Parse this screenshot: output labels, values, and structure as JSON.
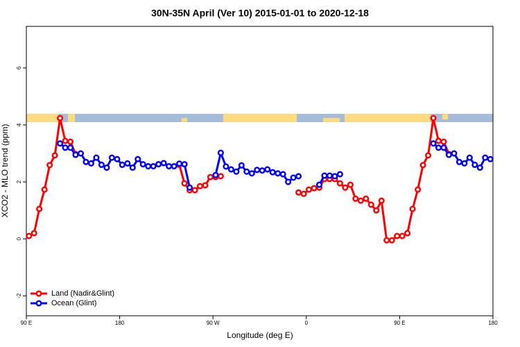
{
  "chart_data": {
    "type": "line",
    "title": "30N-35N April (Ver 10)   2015-01-01 to 2020-12-18",
    "x_label": "Longitude (deg E)",
    "y_label": "XCO2 - MLO trend (ppm)",
    "xlim": [
      90,
      540
    ],
    "xticks": [
      {
        "value": 90,
        "label": "90 E"
      },
      180,
      {
        "value": 270,
        "label": "90 W"
      },
      {
        "value": 360,
        "label": "0"
      },
      {
        "value": 450,
        "label": "90 E"
      },
      {
        "value": 540,
        "label": "180"
      }
    ],
    "ylim": [
      -2.7,
      7.46
    ],
    "yticks": [
      -2,
      0,
      2,
      4,
      6
    ],
    "legend": "bottom-left",
    "series": [
      {
        "name": "Land (Nadir&Glint)",
        "color": "#ff0000",
        "x": [
          92.5,
          97.5,
          102.5,
          107.5,
          112.5,
          117.5,
          122.5,
          127.5,
          132.5,
          137.5,
          142.5,
          237.5,
          242.5,
          247.5,
          252.5,
          257.5,
          262.5,
          267.5,
          272.5,
          277.5,
          282.5,
          352.5,
          357.5,
          362.5,
          367.5,
          372.5,
          377.5,
          382.5,
          387.5,
          392.5,
          397.5,
          402.5,
          407.5,
          412.5,
          417.5,
          422.5,
          427.5,
          432.5,
          437.5,
          442.5,
          447.5,
          452.5,
          457.5,
          462.5,
          467.5,
          472.5,
          477.5,
          482.5,
          487.5,
          492.5,
          497.5
        ],
        "values": [
          0.1,
          0.2,
          1.05,
          1.73,
          2.59,
          2.93,
          4.24,
          3.44,
          3.41,
          2.98,
          null,
          2.6,
          1.95,
          1.71,
          1.71,
          1.85,
          1.88,
          2.17,
          2.17,
          2.2,
          null,
          1.63,
          1.58,
          1.73,
          1.78,
          1.8,
          2.1,
          2.1,
          2.1,
          1.95,
          1.8,
          1.9,
          1.41,
          1.34,
          1.41,
          1.2,
          1.0,
          1.34,
          -0.05,
          -0.05,
          0.1,
          0.1,
          0.2,
          1.05,
          1.73,
          2.59,
          2.93,
          4.24,
          3.44,
          3.41,
          2.98
        ]
      },
      {
        "name": "Ocean (Glint)",
        "color": "#0000ff",
        "x": [
          122.5,
          127.5,
          132.5,
          137.5,
          142.5,
          147.5,
          152.5,
          157.5,
          162.5,
          167.5,
          172.5,
          177.5,
          182.5,
          187.5,
          192.5,
          197.5,
          202.5,
          207.5,
          212.5,
          217.5,
          222.5,
          227.5,
          232.5,
          237.5,
          242.5,
          247.5,
          252.5,
          272.5,
          277.5,
          282.5,
          287.5,
          292.5,
          297.5,
          302.5,
          307.5,
          312.5,
          317.5,
          322.5,
          327.5,
          332.5,
          337.5,
          342.5,
          347.5,
          352.5,
          357.5,
          372.5,
          377.5,
          382.5,
          387.5,
          392.5,
          397.5,
          482.5,
          487.5,
          492.5,
          497.5,
          502.5,
          507.5,
          512.5,
          517.5,
          522.5,
          527.5,
          532.5,
          537.5
        ],
        "values": [
          3.35,
          3.2,
          3.2,
          2.95,
          3.0,
          2.7,
          2.65,
          2.85,
          2.6,
          2.5,
          2.85,
          2.8,
          2.6,
          2.65,
          2.5,
          2.8,
          2.62,
          2.55,
          2.55,
          2.62,
          2.66,
          2.55,
          2.55,
          2.64,
          2.62,
          1.8,
          null,
          2.24,
          3.02,
          2.54,
          2.44,
          2.36,
          2.58,
          2.36,
          2.3,
          2.42,
          2.4,
          2.44,
          2.34,
          2.3,
          2.27,
          2.0,
          2.15,
          2.2,
          null,
          1.9,
          2.22,
          2.22,
          2.2,
          2.27,
          null,
          3.35,
          3.2,
          3.2,
          2.95,
          3.0,
          2.7,
          2.65,
          2.85,
          2.6,
          2.5,
          2.85,
          2.8
        ]
      }
    ]
  }
}
